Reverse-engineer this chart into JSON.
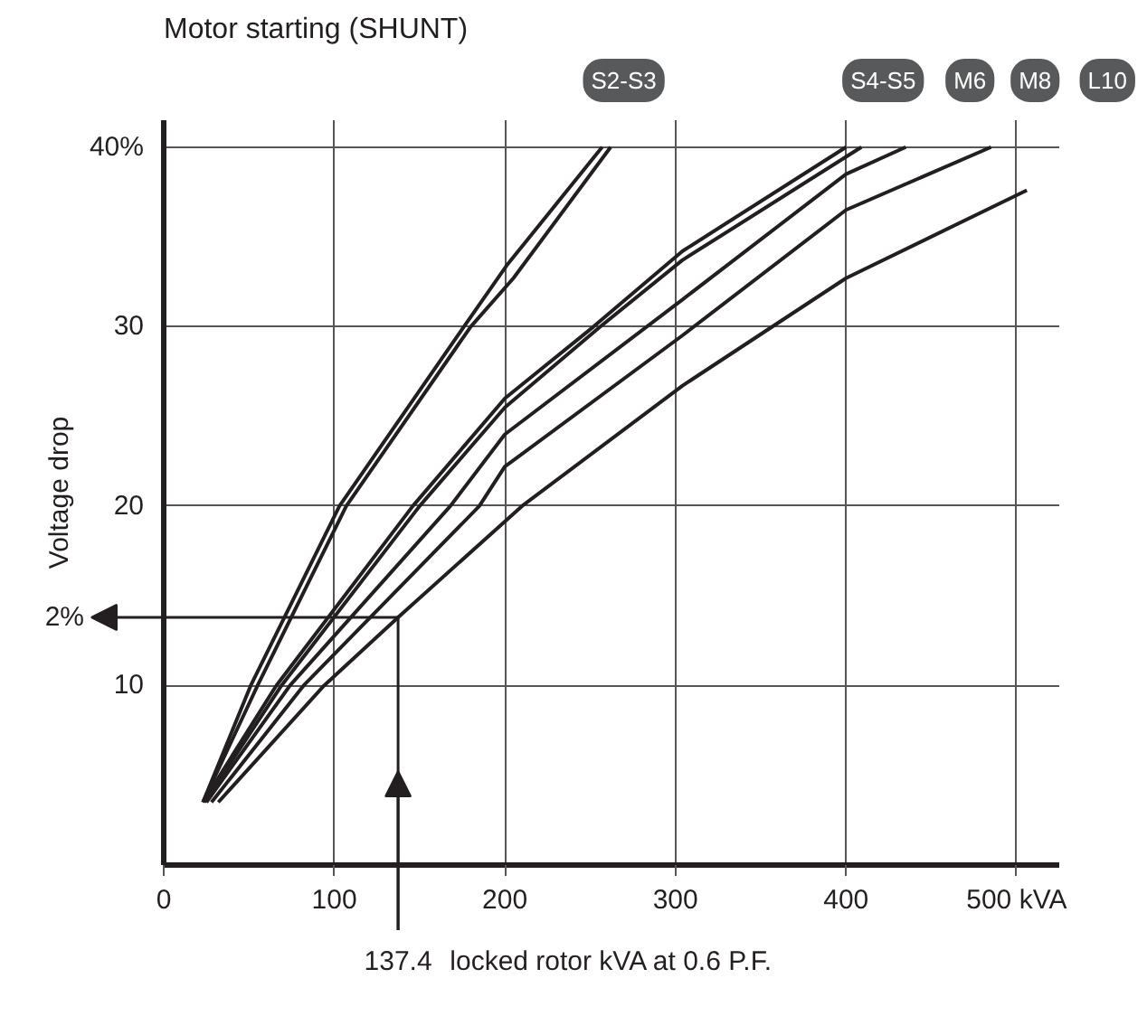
{
  "chart_data": {
    "type": "line",
    "title": "Motor starting (SHUNT)",
    "xlabel": "locked rotor kVA at 0.6 P.F.",
    "ylabel": "Voltage drop",
    "xlim": [
      0,
      525
    ],
    "ylim": [
      0,
      41.5
    ],
    "xticks": [
      0,
      100,
      200,
      300,
      400,
      {
        "value": 500,
        "label": "500 kVA"
      }
    ],
    "yticks": [
      10,
      20,
      30,
      {
        "value": 40,
        "label": "40%"
      }
    ],
    "grid": true,
    "line_style": "solid",
    "annotations": [
      {
        "text": "137.4",
        "x": 137.4
      },
      {
        "text": "2%",
        "x": 137.4,
        "y": 13.8
      }
    ],
    "series": [
      {
        "name": "S2-S3",
        "color": "#231f20",
        "x": [
          23,
          51,
          103,
          176,
          201,
          257
        ],
        "values": [
          3.5,
          10,
          20,
          30,
          33.4,
          40
        ]
      },
      {
        "color": "#231f20",
        "x": [
          23,
          55,
          107,
          180,
          205,
          262
        ],
        "values": [
          3.5,
          10,
          20,
          30,
          32.7,
          40
        ]
      },
      {
        "color": "#231f20",
        "x": [
          23,
          66,
          146,
          200,
          252,
          304,
          400
        ],
        "values": [
          3.5,
          10,
          20,
          26,
          30,
          34.2,
          40
        ]
      },
      {
        "name": "S4-S5",
        "color": "#231f20",
        "x": [
          24,
          69,
          150,
          200,
          256,
          304,
          409
        ],
        "values": [
          3.5,
          10,
          20,
          25.5,
          30,
          33.7,
          40
        ]
      },
      {
        "name": "M6",
        "color": "#231f20",
        "x": [
          25,
          74,
          168,
          200,
          304,
          400,
          435
        ],
        "values": [
          3.5,
          10,
          20,
          24,
          31.5,
          38.5,
          40
        ]
      },
      {
        "name": "M8",
        "color": "#231f20",
        "x": [
          28,
          82,
          185,
          200,
          304,
          400,
          485
        ],
        "values": [
          3.5,
          10,
          20,
          22.2,
          29.5,
          36.5,
          40
        ]
      },
      {
        "name": "L10",
        "color": "#231f20",
        "x": [
          32,
          94,
          137.4,
          210,
          304,
          400,
          506
        ],
        "values": [
          3.5,
          10,
          13.8,
          20,
          26.7,
          32.7,
          37.6
        ]
      }
    ]
  }
}
